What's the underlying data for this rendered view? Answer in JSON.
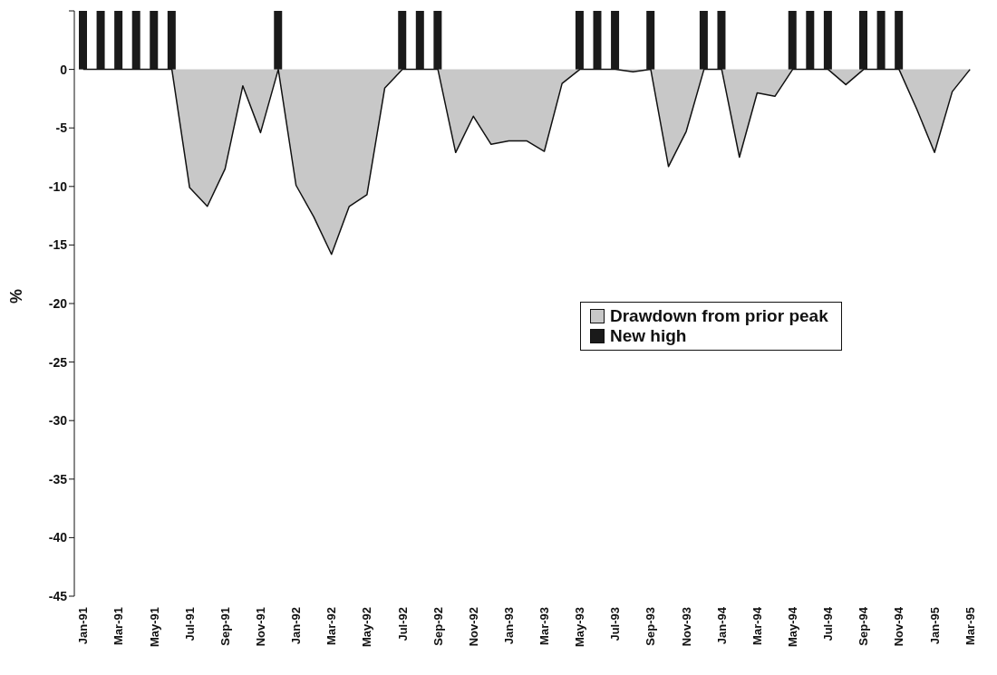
{
  "chart_data": {
    "type": "area",
    "ylabel": "%",
    "categories": [
      "Jan-91",
      null,
      "Mar-91",
      null,
      "May-91",
      null,
      "Jul-91",
      null,
      "Sep-91",
      null,
      "Nov-91",
      null,
      "Jan-92",
      null,
      "Mar-92",
      null,
      "May-92",
      null,
      "Jul-92",
      null,
      "Sep-92",
      null,
      "Nov-92",
      null,
      "Jan-93",
      null,
      "Mar-93",
      null,
      "May-93",
      null,
      "Jul-93",
      null,
      "Sep-93",
      null,
      "Nov-93",
      null,
      "Jan-94",
      null,
      "Mar-94",
      null,
      "May-94",
      null,
      "Jul-94",
      null,
      "Sep-94",
      null,
      "Nov-94",
      null,
      "Jan-95",
      null,
      "Mar-95"
    ],
    "series": [
      {
        "name": "Drawdown from prior peak",
        "color": "#c8c8c8",
        "values": [
          0,
          0,
          0,
          0,
          0,
          0,
          -10.1,
          -11.7,
          -8.5,
          -1.4,
          -5.4,
          0,
          -9.9,
          -12.6,
          -15.8,
          -11.7,
          -10.7,
          -1.6,
          0,
          0,
          0,
          -7.1,
          -4.0,
          -6.4,
          -6.1,
          -6.1,
          -7.0,
          -1.2,
          0,
          0,
          0,
          -0.2,
          0,
          -8.3,
          -5.3,
          0,
          0,
          -7.5,
          -2.0,
          -2.3,
          0,
          0,
          0,
          -1.3,
          0,
          0,
          0,
          -3.4,
          -7.1,
          -1.9,
          0
        ]
      },
      {
        "name": "New high",
        "type": "bar",
        "color": "#1a1a1a",
        "values": [
          5,
          5,
          5,
          5,
          5,
          5,
          null,
          null,
          null,
          null,
          null,
          5,
          null,
          null,
          null,
          null,
          null,
          null,
          5,
          5,
          5,
          null,
          null,
          null,
          null,
          null,
          null,
          null,
          5,
          5,
          5,
          null,
          5,
          null,
          null,
          5,
          5,
          null,
          null,
          null,
          5,
          5,
          5,
          null,
          5,
          5,
          5,
          null,
          null,
          null,
          null
        ]
      }
    ],
    "ylim": [
      -45,
      5
    ],
    "yticks": [
      -45,
      -40,
      -35,
      -30,
      -25,
      -20,
      -15,
      -10,
      -5,
      0,
      {
        "value": 5,
        "label": null
      }
    ],
    "grid": false,
    "legend": "right"
  }
}
